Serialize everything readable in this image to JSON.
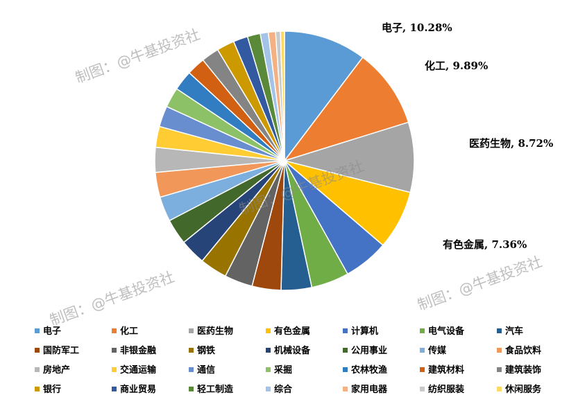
{
  "chart_data": {
    "type": "pie",
    "categories": [
      "电子",
      "化工",
      "医药生物",
      "有色金属",
      "计算机",
      "电气设备",
      "汽车",
      "国防军工",
      "非银金融",
      "钢铁",
      "机械设备",
      "公用事业",
      "传媒",
      "食品饮料",
      "房地产",
      "交通运输",
      "通信",
      "采掘",
      "农林牧渔",
      "建筑材料",
      "建筑装饰",
      "银行",
      "商业贸易",
      "轻工制造",
      "综合",
      "家用电器",
      "纺织服装",
      "休闲服务"
    ],
    "values": [
      10.28,
      9.89,
      8.72,
      7.36,
      5.6,
      4.7,
      3.8,
      3.6,
      3.5,
      3.4,
      3.2,
      3.2,
      3.1,
      3.1,
      3.1,
      2.6,
      2.6,
      2.5,
      2.5,
      2.3,
      2.2,
      2.2,
      1.8,
      1.6,
      1.0,
      0.9,
      0.6,
      0.5
    ],
    "colors": [
      "#5b9bd5",
      "#ed7d31",
      "#a5a5a5",
      "#ffc000",
      "#4472c4",
      "#70ad47",
      "#255e91",
      "#9e480e",
      "#636363",
      "#997300",
      "#264478",
      "#43682b",
      "#7cafdd",
      "#f1975a",
      "#b7b7b7",
      "#ffcd33",
      "#698ed0",
      "#8cc168",
      "#327dc2",
      "#d26012",
      "#848484",
      "#cc9a00",
      "#335aa1",
      "#5a8a39",
      "#a3c4e8",
      "#f4b183",
      "#c9c9c9",
      "#ffd966"
    ],
    "data_labels": [
      {
        "index": 0,
        "text": "电子, 10.28%"
      },
      {
        "index": 1,
        "text": "化工, 9.89%"
      },
      {
        "index": 2,
        "text": "医药生物, 8.72%"
      },
      {
        "index": 3,
        "text": "有色金属, 7.36%"
      }
    ],
    "legend_position": "bottom"
  },
  "watermark_text": "制图：@牛基投资社"
}
